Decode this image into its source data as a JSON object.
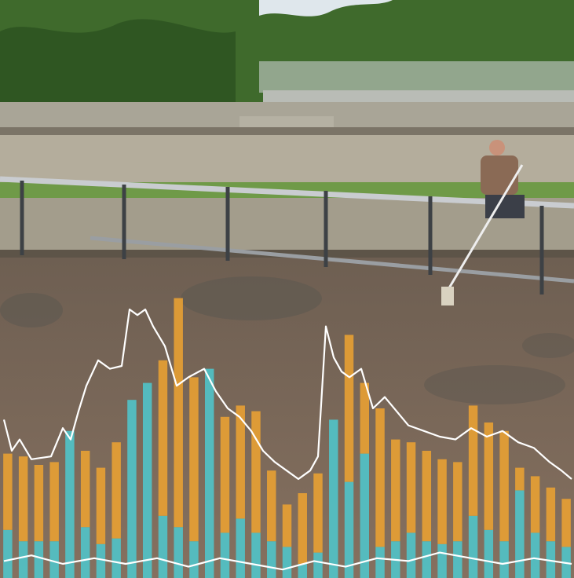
{
  "chart_data": {
    "type": "bar",
    "stacked": true,
    "ylim": [
      0,
      100
    ],
    "xlim": [
      0,
      731
    ],
    "series": [
      {
        "color": "#4fc6cc",
        "values": [
          17,
          13,
          13,
          13,
          52,
          18,
          12,
          14,
          63,
          69,
          22,
          18,
          13,
          74,
          16,
          21,
          16,
          13,
          11,
          5,
          9,
          56,
          34,
          44,
          11,
          13,
          16,
          13,
          12,
          13,
          22,
          17,
          13,
          31,
          16,
          13,
          11
        ]
      },
      {
        "color": "#eaa232",
        "values": [
          27,
          30,
          27,
          28,
          0,
          27,
          27,
          34,
          0,
          0,
          55,
          81,
          58,
          0,
          41,
          40,
          43,
          25,
          15,
          25,
          28,
          0,
          52,
          25,
          49,
          36,
          32,
          32,
          30,
          28,
          39,
          38,
          39,
          8,
          20,
          19,
          17
        ]
      }
    ],
    "lines": [
      {
        "color": "#ffffff",
        "x": [
          5,
          15,
          25,
          40,
          65,
          80,
          90,
          100,
          110,
          125,
          140,
          155,
          165,
          175,
          185,
          195,
          210,
          225,
          240,
          260,
          275,
          290,
          305,
          320,
          335,
          350,
          365,
          380,
          395,
          405,
          415,
          425,
          435,
          445,
          460,
          475,
          490,
          505,
          520,
          540,
          560,
          580,
          600,
          620,
          640,
          660,
          680,
          700,
          715,
          728
        ],
        "values": [
          56,
          45,
          49,
          42,
          43,
          53,
          49,
          59,
          68,
          77,
          74,
          75,
          95,
          93,
          95,
          89,
          82,
          68,
          71,
          74,
          66,
          60,
          57,
          52,
          45,
          41,
          38,
          35,
          38,
          43,
          89,
          78,
          73,
          71,
          74,
          60,
          64,
          59,
          54,
          52,
          50,
          49,
          53,
          50,
          52,
          48,
          46,
          41,
          38,
          35
        ]
      },
      {
        "color": "#ffffff",
        "x": [
          5,
          40,
          80,
          120,
          160,
          200,
          240,
          280,
          320,
          360,
          400,
          440,
          480,
          520,
          560,
          600,
          640,
          680,
          728
        ],
        "values": [
          6,
          8,
          5,
          7,
          5,
          7,
          4,
          7,
          5,
          3,
          6,
          4,
          7,
          6,
          9,
          7,
          5,
          7,
          5
        ]
      }
    ]
  }
}
